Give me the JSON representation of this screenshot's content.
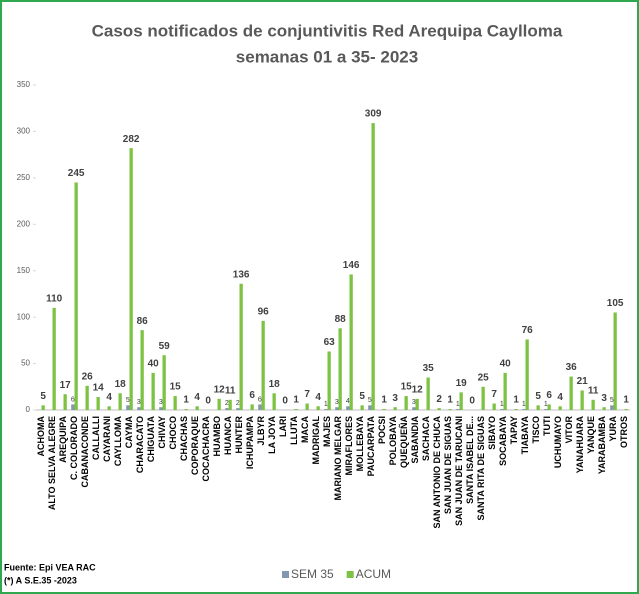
{
  "chart_data": {
    "type": "bar",
    "title": "Casos notificados de conjuntivitis Red Arequipa Caylloma",
    "subtitle": "semanas 01 a 35- 2023",
    "categories": [
      "ACHOMA",
      "ALTO SELVA ALEGRE",
      "AREQUIPA",
      "C. COLORADO",
      "CABANACONDE",
      "CALLALLI",
      "CAYARANI",
      "CAYLLOMA",
      "CAYMA",
      "CHARACATO",
      "CHIGUATA",
      "CHIVAY",
      "CHOCO",
      "CHACHAS",
      "COPORAQUE",
      "COCACHACRA",
      "HUAMBO",
      "HUANCA",
      "HUNTER",
      "ICHUPAMPA",
      "JLBYR",
      "LA JOYA",
      "LARI",
      "LLUTA",
      "MACA",
      "MADRIGAL",
      "MAJES",
      "MARIANO MELGAR",
      "MIRAFLORES",
      "MOLLEBAYA",
      "PAUCARPATA",
      "POCSI",
      "POLOBAYA",
      "QUEQUEÑA",
      "SABANDIA",
      "SACHACA",
      "SAN ANTONIO DE CHUCA",
      "SAN JUAN DE SIGUAS",
      "SAN JUAN DE TARUCANI",
      "SANTA ISABEL DE...",
      "SANTA RITA DE SIGUAS",
      "SIBAYO",
      "SOCABAYA",
      "TAPAY",
      "TIABAYA",
      "TISCO",
      "TUTI",
      "UCHUMAYO",
      "VITOR",
      "YANAHUARA",
      "YANQUE",
      "YARABAMBA",
      "YURA",
      "OTROS"
    ],
    "series": [
      {
        "name": "SEM 35",
        "color": "#8497b0",
        "values": [
          null,
          null,
          null,
          6,
          null,
          null,
          null,
          null,
          5,
          3,
          null,
          3,
          null,
          null,
          null,
          null,
          null,
          2,
          2,
          null,
          6,
          null,
          null,
          null,
          null,
          null,
          1,
          3,
          4,
          null,
          5,
          null,
          null,
          null,
          3,
          null,
          null,
          null,
          1,
          null,
          null,
          null,
          1,
          null,
          1,
          null,
          1,
          null,
          null,
          null,
          null,
          null,
          5,
          null
        ]
      },
      {
        "name": "ACUM",
        "color": "#7dc242",
        "values": [
          5,
          110,
          17,
          245,
          26,
          14,
          4,
          18,
          282,
          86,
          40,
          59,
          15,
          1,
          4,
          0,
          12,
          11,
          136,
          6,
          96,
          18,
          0,
          1,
          7,
          4,
          63,
          88,
          146,
          5,
          309,
          1,
          3,
          15,
          12,
          35,
          2,
          1,
          19,
          0,
          25,
          7,
          40,
          1,
          76,
          5,
          6,
          4,
          36,
          21,
          11,
          3,
          105,
          1
        ]
      }
    ],
    "ylim": [
      0,
      350
    ],
    "yticks": [
      0,
      50,
      100,
      150,
      200,
      250,
      300,
      350
    ],
    "grid": false,
    "legend": "bottom",
    "notes": [
      "Fuente: Epi VEA RAC",
      "(*) A S.E.35 -2023"
    ]
  }
}
